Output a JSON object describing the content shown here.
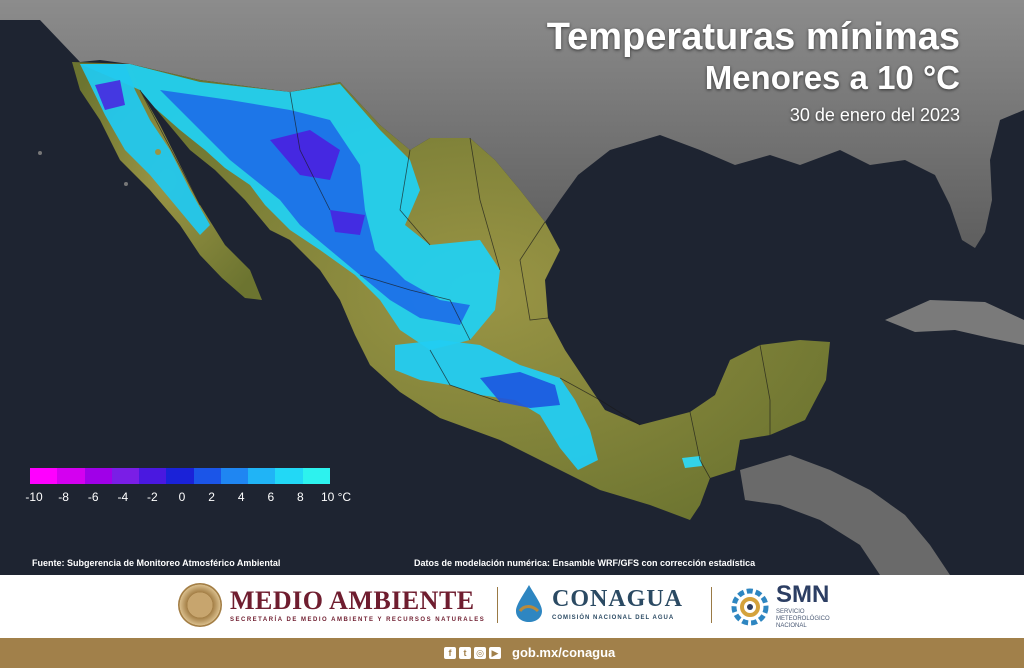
{
  "title": {
    "line1": "Temperaturas mínimas",
    "line2": "Menores a 10 °C",
    "date": "30 de enero del 2023"
  },
  "legend": {
    "labels": [
      "-10",
      "-8",
      "-6",
      "-4",
      "-2",
      "0",
      "2",
      "4",
      "6",
      "8",
      "10 °C"
    ],
    "colors": [
      "#ff00ff",
      "#d400f0",
      "#a000e8",
      "#7a1ee6",
      "#4a18e0",
      "#1a22d8",
      "#1b55e8",
      "#1f86f2",
      "#20b4f6",
      "#22d8f6",
      "#2df2ee"
    ]
  },
  "sources": {
    "left": "Fuente: Subgerencia de Monitoreo Atmosférico Ambiental",
    "right": "Datos de modelación numérica: Ensamble WRF/GFS con corrección estadística"
  },
  "logos": {
    "medio_ambiente": {
      "name": "MEDIO AMBIENTE",
      "subtitle": "SECRETARÍA DE MEDIO AMBIENTE Y RECURSOS NATURALES"
    },
    "conagua": {
      "name": "CONAGUA",
      "subtitle": "COMISIÓN NACIONAL DEL AGUA"
    },
    "smn": {
      "name": "SMN",
      "subtitle": "SERVICIO METEOROLÓGICO NACIONAL"
    }
  },
  "footer": {
    "social_icons": [
      "facebook-icon",
      "twitter-icon",
      "instagram-icon",
      "youtube-icon"
    ],
    "url": "gob.mx/conagua"
  },
  "colors": {
    "ocean": "#1e2431",
    "land_other": "#6d6d6d",
    "land_mexico": "#8b8a3c",
    "footer_band": "#a1804a",
    "ma_brand": "#6f1d2f",
    "conagua_brand": "#2b4a63"
  }
}
